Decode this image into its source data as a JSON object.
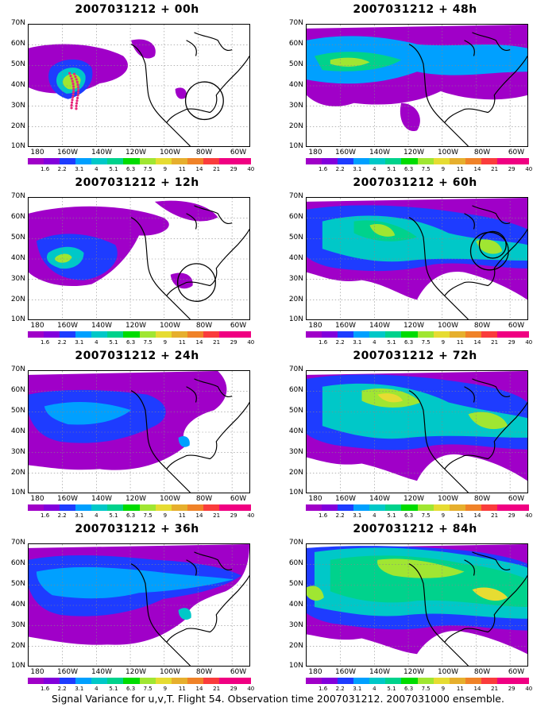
{
  "footer": "Signal Variance for u,v,T. Flight 54. Observation time 2007031212. 2007031000 ensemble.",
  "axes": {
    "lat_labels": [
      "70N",
      "60N",
      "50N",
      "40N",
      "30N",
      "20N",
      "10N"
    ],
    "lon_labels": [
      "180",
      "160W",
      "140W",
      "120W",
      "100W",
      "80W",
      "60W"
    ]
  },
  "colorbar": {
    "labels": [
      "1.6",
      "2.2",
      "3.1",
      "4",
      "5.1",
      "6.3",
      "7.5",
      "9",
      "11",
      "14",
      "21",
      "29",
      "40"
    ],
    "colors": [
      "#a000c8",
      "#8200dc",
      "#1e3cff",
      "#00a0ff",
      "#00c8c8",
      "#00d28c",
      "#00dc00",
      "#a0e632",
      "#e6dc32",
      "#e6af2d",
      "#f08228",
      "#fa3c3c",
      "#f00082"
    ]
  },
  "panels": [
    {
      "title": "2007031212 + 00h"
    },
    {
      "title": "2007031212 + 48h"
    },
    {
      "title": "2007031212 + 12h"
    },
    {
      "title": "2007031212 + 60h"
    },
    {
      "title": "2007031212 + 24h"
    },
    {
      "title": "2007031212 + 72h"
    },
    {
      "title": "2007031212 + 36h"
    },
    {
      "title": "2007031212 + 84h"
    }
  ]
}
